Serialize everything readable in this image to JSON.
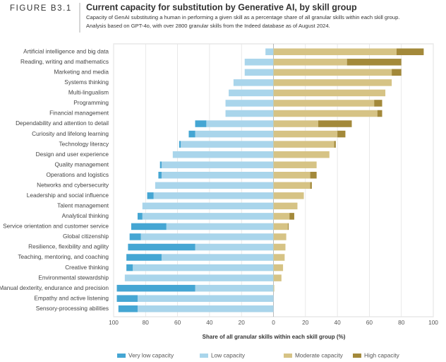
{
  "header": {
    "figure": "FIGURE B3.1"
  },
  "chart_data": {
    "type": "diverging-bar",
    "title": "Current capacity for substitution by Generative AI, by skill group",
    "subtitle": [
      "Capacity of GenAI substituting a human in performing a given skill as a percentage share of all granular skills within each skill group.",
      "Analysis based on GPT-4o, with over 2800 granular skills from the Indeed database as of August 2024."
    ],
    "xlabel": "Share of all granular skills within each skill group (%)",
    "categories": [
      "Artificial intelligence and big data",
      "Reading, writing and mathematics",
      "Marketing and media",
      "Systems thinking",
      "Multi-lingualism",
      "Programming",
      "Financial management",
      "Dependability and attention to detail",
      "Curiosity and lifelong learning",
      "Technology literacy",
      "Design and user experience",
      "Quality management",
      "Operations and logistics",
      "Networks and cybersecurity",
      "Leadership and social influence",
      "Talent management",
      "Analytical thinking",
      "Service orientation and customer service",
      "Global citizenship",
      "Resilience, flexibility and agility",
      "Teaching, mentoring, and coaching",
      "Creative thinking",
      "Environmental stewardship",
      "Manual dexterity, endurance and precision",
      "Empathy and active listening",
      "Sensory-processing abilities"
    ],
    "series": [
      {
        "name": "Very low capacity",
        "color": "#45a6d3",
        "values": [
          0,
          0,
          0,
          0,
          0,
          0,
          0,
          -7,
          -4,
          -1,
          0,
          -1,
          -2,
          0,
          -4,
          0,
          -3,
          -22,
          -7,
          -42,
          -22,
          -4,
          0,
          -49,
          -13,
          -12
        ]
      },
      {
        "name": "Low capacity",
        "color": "#a9d5eb",
        "values": [
          -5,
          -18,
          -18,
          -25,
          -28,
          -30,
          -30,
          -42,
          -49,
          -58,
          -63,
          -70,
          -70,
          -74,
          -75,
          -82,
          -82,
          -67,
          -83,
          -49,
          -70,
          -88,
          -93,
          -49,
          -85,
          -85
        ]
      },
      {
        "name": "Moderate capacity",
        "color": "#d6c385",
        "values": [
          77,
          46,
          74,
          74,
          70,
          63,
          65,
          28,
          40,
          38,
          35,
          27,
          23,
          23,
          19,
          15,
          10,
          9,
          8,
          7.5,
          7,
          6,
          5,
          0.5,
          0,
          0
        ]
      },
      {
        "name": "High capacity",
        "color": "#a3893a",
        "values": [
          17,
          34,
          6,
          0,
          0,
          5,
          3,
          21,
          5,
          1,
          0,
          0,
          4,
          1,
          0,
          0,
          3,
          0.5,
          0,
          0,
          0,
          0,
          0,
          0,
          0,
          0
        ]
      }
    ],
    "xlim": [
      -100,
      100
    ],
    "xticks": [
      {
        "value": -100,
        "label": "100"
      },
      {
        "value": -80,
        "label": "80"
      },
      {
        "value": -60,
        "label": "60"
      },
      {
        "value": -40,
        "label": "40"
      },
      {
        "value": -20,
        "label": "20"
      },
      0,
      20,
      40,
      60,
      80,
      100
    ],
    "grid": true,
    "legend": "bottom"
  }
}
